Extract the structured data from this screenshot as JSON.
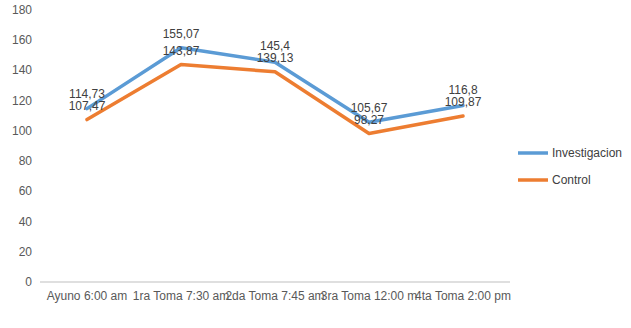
{
  "chart_data": {
    "type": "line",
    "categories": [
      "Ayuno 6:00 am",
      "1ra Toma 7:30 am",
      "2da Toma 7:45 am",
      "3ra Toma 12:00 m",
      "4ta Toma 2:00 pm"
    ],
    "series": [
      {
        "name": "Investigacion",
        "color": "#5b9bd5",
        "values": [
          114.73,
          155.07,
          145.4,
          105.67,
          116.8
        ],
        "value_labels": [
          "114,73",
          "155,07",
          "145,4",
          "105,67",
          "116,8"
        ]
      },
      {
        "name": "Control",
        "color": "#ed7d31",
        "values": [
          107.47,
          143.87,
          139.13,
          98.27,
          109.87
        ],
        "value_labels": [
          "107,47",
          "143,87",
          "139,13",
          "98,27",
          "109,87"
        ]
      }
    ],
    "ylim": [
      0,
      180
    ],
    "yticks": [
      0,
      20,
      40,
      60,
      80,
      100,
      120,
      140,
      160,
      180
    ],
    "grid": false,
    "legend": "right",
    "data_labels": true
  }
}
